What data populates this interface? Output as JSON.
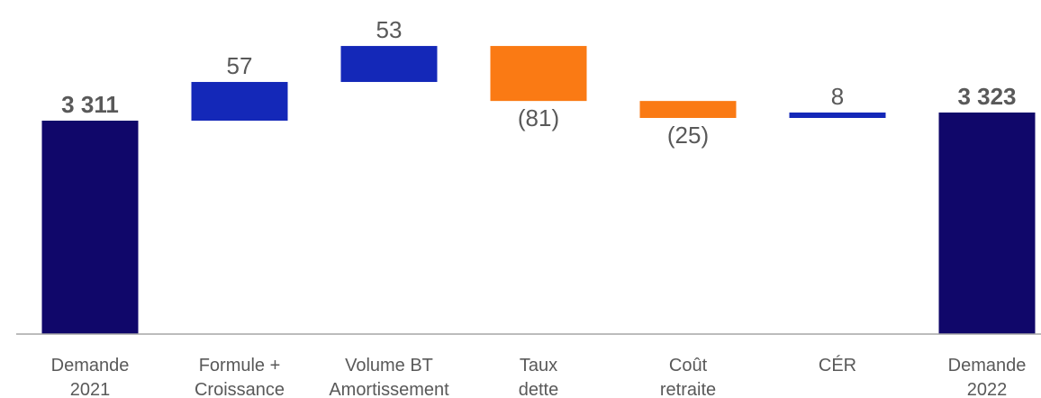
{
  "chart_data": {
    "type": "bar",
    "subtype": "waterfall",
    "title": "",
    "xlabel": "",
    "ylabel": "",
    "categories": [
      [
        "Demande",
        "2021"
      ],
      [
        "Formule +",
        "Croissance"
      ],
      [
        "Volume BT",
        "Amortissement"
      ],
      [
        "Taux",
        "dette"
      ],
      [
        "Coût",
        "retraite"
      ],
      [
        "CÉR",
        ""
      ],
      [
        "Demande",
        "2022"
      ]
    ],
    "values": [
      3311,
      57,
      53,
      -81,
      -25,
      8,
      3323
    ],
    "kinds": [
      "total",
      "increase",
      "increase",
      "decrease",
      "decrease",
      "increase",
      "total"
    ],
    "value_labels": [
      "3 311",
      "57",
      "53",
      "(81)",
      "(25)",
      "8",
      "3 323"
    ],
    "colors": {
      "total": "#10076a",
      "increase": "#1428b8",
      "decrease": "#fa7a14",
      "axis": "#a6a6a6",
      "text": "#595959"
    },
    "legend": "none",
    "grid": false
  }
}
